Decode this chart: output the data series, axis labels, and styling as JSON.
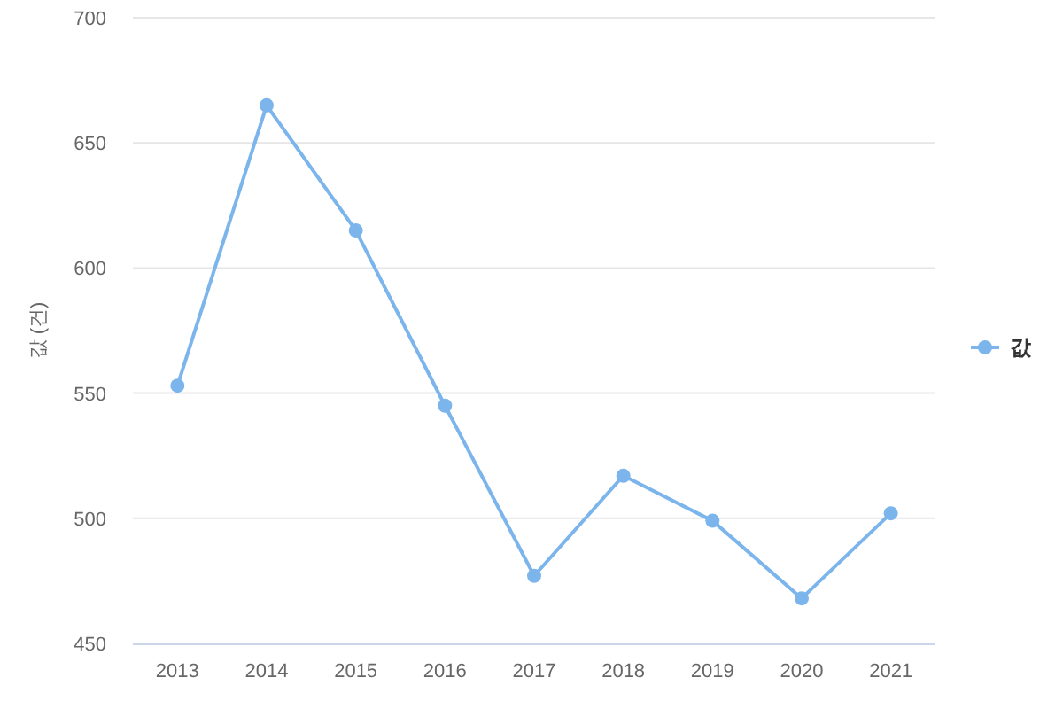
{
  "chart_data": {
    "type": "line",
    "ylabel": "값 (건)",
    "categories": [
      "2013",
      "2014",
      "2015",
      "2016",
      "2017",
      "2018",
      "2019",
      "2020",
      "2021"
    ],
    "series": [
      {
        "name": "값",
        "color": "#7cb5ec",
        "values": [
          553,
          665,
          615,
          545,
          477,
          517,
          499,
          468,
          502
        ]
      }
    ],
    "ylim": [
      450,
      700
    ],
    "yticks": [
      450,
      500,
      550,
      600,
      650,
      700
    ],
    "grid": "y",
    "legend": "right",
    "marker": "circle",
    "line_style": "solid"
  }
}
